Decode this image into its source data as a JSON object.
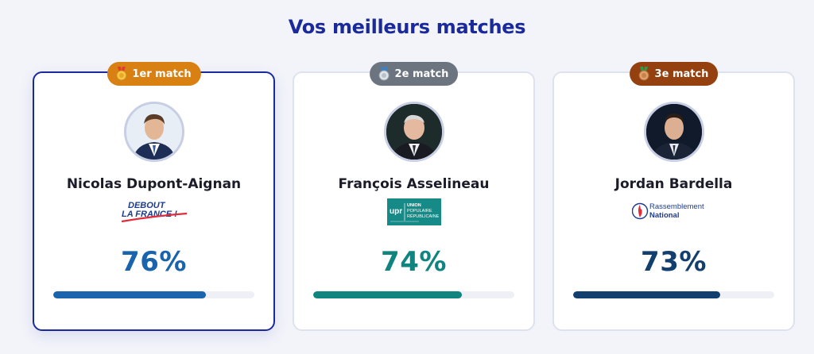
{
  "heading": "Vos meilleurs matches",
  "matches": [
    {
      "badge": "1er match",
      "name": "Nicolas Dupont-Aignan",
      "logo": {
        "line1": "DEBOUT",
        "line2": "LA FRANCE !"
      },
      "percent": 76,
      "percent_label": "76%",
      "color": "#1a63ad",
      "badge_color": "#d98013"
    },
    {
      "badge": "2e match",
      "name": "François Asselineau",
      "logo": {
        "abbr": "upr",
        "line1": "UNION",
        "line2": "POPULAIRE",
        "line3": "RÉPUBLICAINE"
      },
      "percent": 74,
      "percent_label": "74%",
      "color": "#108580",
      "badge_color": "#6c7480"
    },
    {
      "badge": "3e match",
      "name": "Jordan Bardella",
      "logo": {
        "line1": "Rassemblement",
        "line2": "National"
      },
      "percent": 73,
      "percent_label": "73%",
      "color": "#133f6e",
      "badge_color": "#94400f"
    }
  ]
}
